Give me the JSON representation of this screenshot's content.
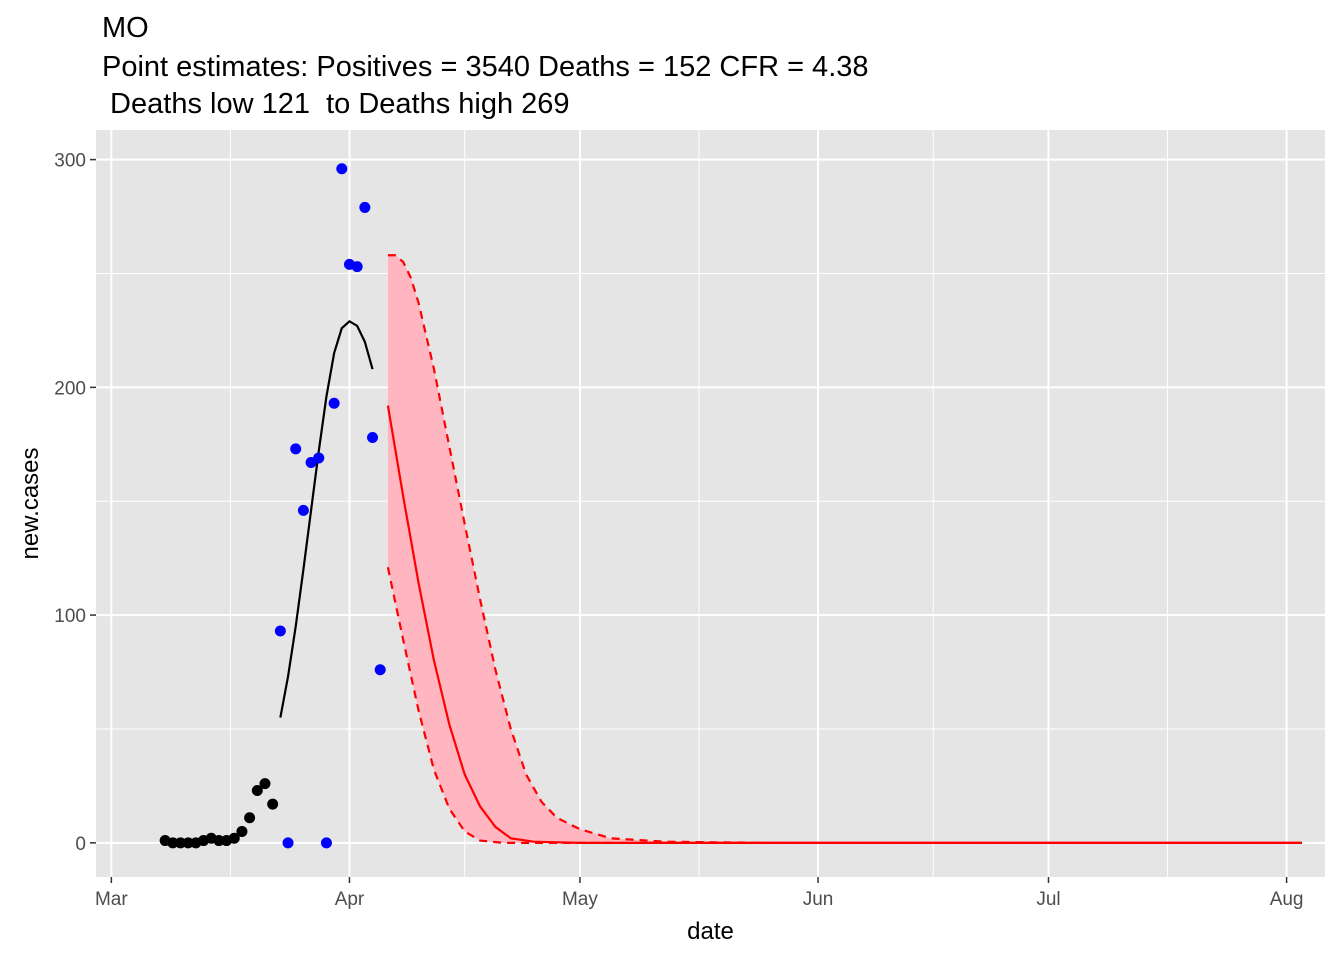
{
  "title": "MO",
  "subtitle_line1": "Point estimates: Positives = 3540 Deaths = 152 CFR = 4.38",
  "subtitle_line2": " Deaths low 121  to Deaths high 269",
  "chart_data": {
    "type": "scatter",
    "xlabel": "date",
    "ylabel": "new.cases",
    "xlim": [
      "2020-02-28",
      "2020-08-06"
    ],
    "ylim": [
      -15,
      313
    ],
    "grid": true,
    "legend": "none",
    "x_ticks": [
      {
        "label": "Mar",
        "date": "2020-03-01"
      },
      {
        "label": "Apr",
        "date": "2020-04-01"
      },
      {
        "label": "May",
        "date": "2020-05-01"
      },
      {
        "label": "Jun",
        "date": "2020-06-01"
      },
      {
        "label": "Jul",
        "date": "2020-07-01"
      },
      {
        "label": "Aug",
        "date": "2020-08-01"
      }
    ],
    "y_ticks": [
      0,
      100,
      200,
      300
    ],
    "colors": {
      "panel_bg": "#e5e5e5",
      "grid": "#ffffff",
      "early_points": "#000000",
      "recent_points": "#0000ff",
      "fit_line": "#000000",
      "projection": "#ff0000",
      "band_fill": "#ffb6c1"
    },
    "series": [
      {
        "kind": "points",
        "color": "#000000",
        "points": [
          {
            "x": "2020-03-08",
            "y": 1
          },
          {
            "x": "2020-03-09",
            "y": 0
          },
          {
            "x": "2020-03-10",
            "y": 0
          },
          {
            "x": "2020-03-11",
            "y": 0
          },
          {
            "x": "2020-03-12",
            "y": 0
          },
          {
            "x": "2020-03-13",
            "y": 1
          },
          {
            "x": "2020-03-14",
            "y": 2
          },
          {
            "x": "2020-03-15",
            "y": 1
          },
          {
            "x": "2020-03-16",
            "y": 1
          },
          {
            "x": "2020-03-17",
            "y": 2
          },
          {
            "x": "2020-03-18",
            "y": 5
          },
          {
            "x": "2020-03-19",
            "y": 11
          },
          {
            "x": "2020-03-20",
            "y": 23
          },
          {
            "x": "2020-03-21",
            "y": 26
          },
          {
            "x": "2020-03-22",
            "y": 17
          }
        ]
      },
      {
        "kind": "points",
        "color": "#0000ff",
        "points": [
          {
            "x": "2020-03-23",
            "y": 93
          },
          {
            "x": "2020-03-24",
            "y": 0
          },
          {
            "x": "2020-03-25",
            "y": 173
          },
          {
            "x": "2020-03-26",
            "y": 146
          },
          {
            "x": "2020-03-27",
            "y": 167
          },
          {
            "x": "2020-03-28",
            "y": 169
          },
          {
            "x": "2020-03-29",
            "y": 0
          },
          {
            "x": "2020-03-30",
            "y": 193
          },
          {
            "x": "2020-03-31",
            "y": 296
          },
          {
            "x": "2020-04-01",
            "y": 254
          },
          {
            "x": "2020-04-02",
            "y": 253
          },
          {
            "x": "2020-04-03",
            "y": 279
          },
          {
            "x": "2020-04-04",
            "y": 178
          },
          {
            "x": "2020-04-05",
            "y": 76
          }
        ]
      },
      {
        "kind": "line",
        "color": "#000000",
        "points": [
          {
            "x": "2020-03-23",
            "y": 55
          },
          {
            "x": "2020-03-24",
            "y": 73
          },
          {
            "x": "2020-03-25",
            "y": 95
          },
          {
            "x": "2020-03-26",
            "y": 120
          },
          {
            "x": "2020-03-27",
            "y": 146
          },
          {
            "x": "2020-03-28",
            "y": 172
          },
          {
            "x": "2020-03-29",
            "y": 196
          },
          {
            "x": "2020-03-30",
            "y": 215
          },
          {
            "x": "2020-03-31",
            "y": 226
          },
          {
            "x": "2020-04-01",
            "y": 229
          },
          {
            "x": "2020-04-02",
            "y": 227
          },
          {
            "x": "2020-04-03",
            "y": 220
          },
          {
            "x": "2020-04-04",
            "y": 208
          }
        ]
      },
      {
        "kind": "line",
        "color": "#ff0000",
        "points": [
          {
            "x": "2020-04-06",
            "y": 192
          },
          {
            "x": "2020-04-08",
            "y": 152
          },
          {
            "x": "2020-04-10",
            "y": 114
          },
          {
            "x": "2020-04-12",
            "y": 80
          },
          {
            "x": "2020-04-14",
            "y": 52
          },
          {
            "x": "2020-04-16",
            "y": 30
          },
          {
            "x": "2020-04-18",
            "y": 16
          },
          {
            "x": "2020-04-20",
            "y": 7
          },
          {
            "x": "2020-04-22",
            "y": 2
          },
          {
            "x": "2020-04-25",
            "y": 0.5
          },
          {
            "x": "2020-05-01",
            "y": 0
          },
          {
            "x": "2020-08-03",
            "y": 0
          }
        ]
      },
      {
        "kind": "band",
        "color": "#ff0000",
        "fill": "#ffb6c1",
        "upper": [
          {
            "x": "2020-04-06",
            "y": 258
          },
          {
            "x": "2020-04-07",
            "y": 258
          },
          {
            "x": "2020-04-08",
            "y": 255
          },
          {
            "x": "2020-04-09",
            "y": 248
          },
          {
            "x": "2020-04-10",
            "y": 237
          },
          {
            "x": "2020-04-12",
            "y": 208
          },
          {
            "x": "2020-04-14",
            "y": 174
          },
          {
            "x": "2020-04-16",
            "y": 140
          },
          {
            "x": "2020-04-18",
            "y": 107
          },
          {
            "x": "2020-04-20",
            "y": 76
          },
          {
            "x": "2020-04-22",
            "y": 50
          },
          {
            "x": "2020-04-24",
            "y": 30
          },
          {
            "x": "2020-04-26",
            "y": 18
          },
          {
            "x": "2020-04-28",
            "y": 11
          },
          {
            "x": "2020-05-01",
            "y": 6
          },
          {
            "x": "2020-05-05",
            "y": 2
          },
          {
            "x": "2020-05-12",
            "y": 0.5
          },
          {
            "x": "2020-05-25",
            "y": 0
          },
          {
            "x": "2020-08-03",
            "y": 0
          }
        ],
        "lower": [
          {
            "x": "2020-04-06",
            "y": 121
          },
          {
            "x": "2020-04-08",
            "y": 89
          },
          {
            "x": "2020-04-10",
            "y": 58
          },
          {
            "x": "2020-04-12",
            "y": 32
          },
          {
            "x": "2020-04-14",
            "y": 15
          },
          {
            "x": "2020-04-16",
            "y": 5
          },
          {
            "x": "2020-04-18",
            "y": 1
          },
          {
            "x": "2020-04-21",
            "y": 0
          },
          {
            "x": "2020-08-03",
            "y": 0
          }
        ]
      }
    ]
  }
}
